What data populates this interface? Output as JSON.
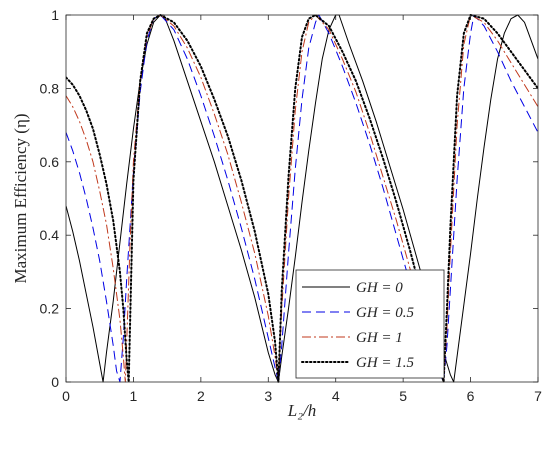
{
  "chart_data": {
    "type": "line",
    "title": "",
    "xlabel": "L₂/h",
    "ylabel": "Maximum Efficiency (η)",
    "xlim": [
      0,
      7
    ],
    "ylim": [
      0,
      1
    ],
    "xticks": [
      "0",
      "1",
      "2",
      "3",
      "4",
      "5",
      "6",
      "7"
    ],
    "yticks": [
      "0",
      "0.2",
      "0.4",
      "0.6",
      "0.8",
      "1"
    ],
    "grid": false,
    "legend_position": "bottom-right",
    "series": [
      {
        "name": "GH = 0",
        "color": "#000000",
        "dash": "solid",
        "x": [
          0,
          0.1,
          0.2,
          0.3,
          0.4,
          0.5,
          0.55,
          0.6,
          0.7,
          0.8,
          0.9,
          1.0,
          1.1,
          1.2,
          1.3,
          1.4,
          1.45,
          1.6,
          1.8,
          2.0,
          2.2,
          2.4,
          2.6,
          2.8,
          3.0,
          3.1,
          3.15,
          3.2,
          3.3,
          3.4,
          3.5,
          3.6,
          3.7,
          3.8,
          3.9,
          4.0,
          4.05,
          4.2,
          4.4,
          4.6,
          4.8,
          5.0,
          5.2,
          5.4,
          5.6,
          5.7,
          5.75,
          5.8,
          5.9,
          6.0,
          6.1,
          6.2,
          6.3,
          6.4,
          6.5,
          6.6,
          6.7,
          6.8,
          6.9,
          7.0
        ],
        "y": [
          0.48,
          0.41,
          0.33,
          0.24,
          0.15,
          0.05,
          0.0,
          0.08,
          0.22,
          0.38,
          0.54,
          0.69,
          0.82,
          0.92,
          0.98,
          1.0,
          1.0,
          0.93,
          0.82,
          0.71,
          0.6,
          0.48,
          0.36,
          0.23,
          0.08,
          0.02,
          0.0,
          0.07,
          0.2,
          0.34,
          0.49,
          0.63,
          0.76,
          0.88,
          0.96,
          1.0,
          1.0,
          0.92,
          0.82,
          0.71,
          0.59,
          0.47,
          0.34,
          0.21,
          0.08,
          0.02,
          0.0,
          0.07,
          0.21,
          0.35,
          0.5,
          0.64,
          0.77,
          0.88,
          0.95,
          0.99,
          1.0,
          0.98,
          0.93,
          0.88
        ]
      },
      {
        "name": "GH = 0.5",
        "color": "#0000e6",
        "dash": "dashed",
        "x": [
          0,
          0.1,
          0.2,
          0.3,
          0.4,
          0.5,
          0.6,
          0.7,
          0.75,
          0.8,
          0.85,
          0.9,
          1.0,
          1.1,
          1.2,
          1.3,
          1.4,
          1.6,
          1.8,
          2.0,
          2.2,
          2.4,
          2.6,
          2.8,
          3.0,
          3.1,
          3.15,
          3.2,
          3.3,
          3.4,
          3.5,
          3.6,
          3.7,
          3.75,
          3.9,
          4.1,
          4.3,
          4.5,
          4.7,
          4.9,
          5.1,
          5.3,
          5.45,
          5.55,
          5.6,
          5.65,
          5.7,
          5.8,
          5.9,
          6.0,
          6.05,
          6.2,
          6.4,
          6.6,
          6.8,
          7.0
        ],
        "y": [
          0.68,
          0.63,
          0.57,
          0.5,
          0.42,
          0.33,
          0.22,
          0.1,
          0.03,
          0.0,
          0.12,
          0.28,
          0.57,
          0.79,
          0.93,
          0.99,
          1.0,
          0.96,
          0.88,
          0.78,
          0.67,
          0.55,
          0.42,
          0.28,
          0.12,
          0.04,
          0.0,
          0.1,
          0.35,
          0.58,
          0.77,
          0.91,
          0.98,
          1.0,
          0.95,
          0.86,
          0.76,
          0.65,
          0.53,
          0.4,
          0.27,
          0.14,
          0.06,
          0.02,
          0.0,
          0.1,
          0.25,
          0.55,
          0.8,
          0.95,
          1.0,
          0.97,
          0.9,
          0.82,
          0.75,
          0.68
        ]
      },
      {
        "name": "GH = 1",
        "color": "#c0391d",
        "dash": "dashdot",
        "x": [
          0,
          0.1,
          0.2,
          0.3,
          0.4,
          0.5,
          0.6,
          0.7,
          0.8,
          0.85,
          0.88,
          0.95,
          1.0,
          1.1,
          1.2,
          1.3,
          1.4,
          1.6,
          1.8,
          2.0,
          2.2,
          2.4,
          2.6,
          2.8,
          3.0,
          3.1,
          3.15,
          3.2,
          3.3,
          3.4,
          3.5,
          3.6,
          3.7,
          3.9,
          4.1,
          4.3,
          4.5,
          4.7,
          4.9,
          5.1,
          5.3,
          5.45,
          5.55,
          5.6,
          5.65,
          5.7,
          5.8,
          5.9,
          6.0,
          6.2,
          6.4,
          6.6,
          6.8,
          7.0
        ],
        "y": [
          0.78,
          0.75,
          0.71,
          0.66,
          0.6,
          0.52,
          0.43,
          0.31,
          0.17,
          0.07,
          0.0,
          0.38,
          0.6,
          0.82,
          0.94,
          0.99,
          1.0,
          0.97,
          0.91,
          0.83,
          0.73,
          0.62,
          0.49,
          0.35,
          0.18,
          0.07,
          0.0,
          0.2,
          0.5,
          0.74,
          0.9,
          0.98,
          1.0,
          0.96,
          0.88,
          0.79,
          0.68,
          0.56,
          0.44,
          0.31,
          0.18,
          0.08,
          0.03,
          0.0,
          0.15,
          0.35,
          0.7,
          0.92,
          1.0,
          0.98,
          0.93,
          0.87,
          0.81,
          0.75
        ]
      },
      {
        "name": "GH = 1.5",
        "color": "#000000",
        "dash": "dotted",
        "x": [
          0,
          0.1,
          0.2,
          0.3,
          0.4,
          0.5,
          0.6,
          0.7,
          0.8,
          0.85,
          0.9,
          0.93,
          1.0,
          1.1,
          1.2,
          1.3,
          1.4,
          1.6,
          1.8,
          2.0,
          2.2,
          2.4,
          2.6,
          2.8,
          3.0,
          3.1,
          3.15,
          3.2,
          3.3,
          3.4,
          3.5,
          3.6,
          3.7,
          3.9,
          4.1,
          4.3,
          4.5,
          4.7,
          4.9,
          5.1,
          5.3,
          5.45,
          5.55,
          5.6,
          5.65,
          5.7,
          5.8,
          5.9,
          6.0,
          6.2,
          6.4,
          6.6,
          6.8,
          7.0
        ],
        "y": [
          0.83,
          0.81,
          0.78,
          0.74,
          0.69,
          0.62,
          0.54,
          0.44,
          0.3,
          0.2,
          0.06,
          0.0,
          0.55,
          0.82,
          0.95,
          0.99,
          1.0,
          0.98,
          0.93,
          0.86,
          0.77,
          0.67,
          0.55,
          0.41,
          0.24,
          0.11,
          0.0,
          0.25,
          0.56,
          0.8,
          0.94,
          0.99,
          1.0,
          0.97,
          0.9,
          0.82,
          0.72,
          0.61,
          0.49,
          0.36,
          0.22,
          0.11,
          0.04,
          0.0,
          0.2,
          0.42,
          0.78,
          0.95,
          1.0,
          0.99,
          0.95,
          0.9,
          0.85,
          0.8
        ]
      }
    ]
  }
}
